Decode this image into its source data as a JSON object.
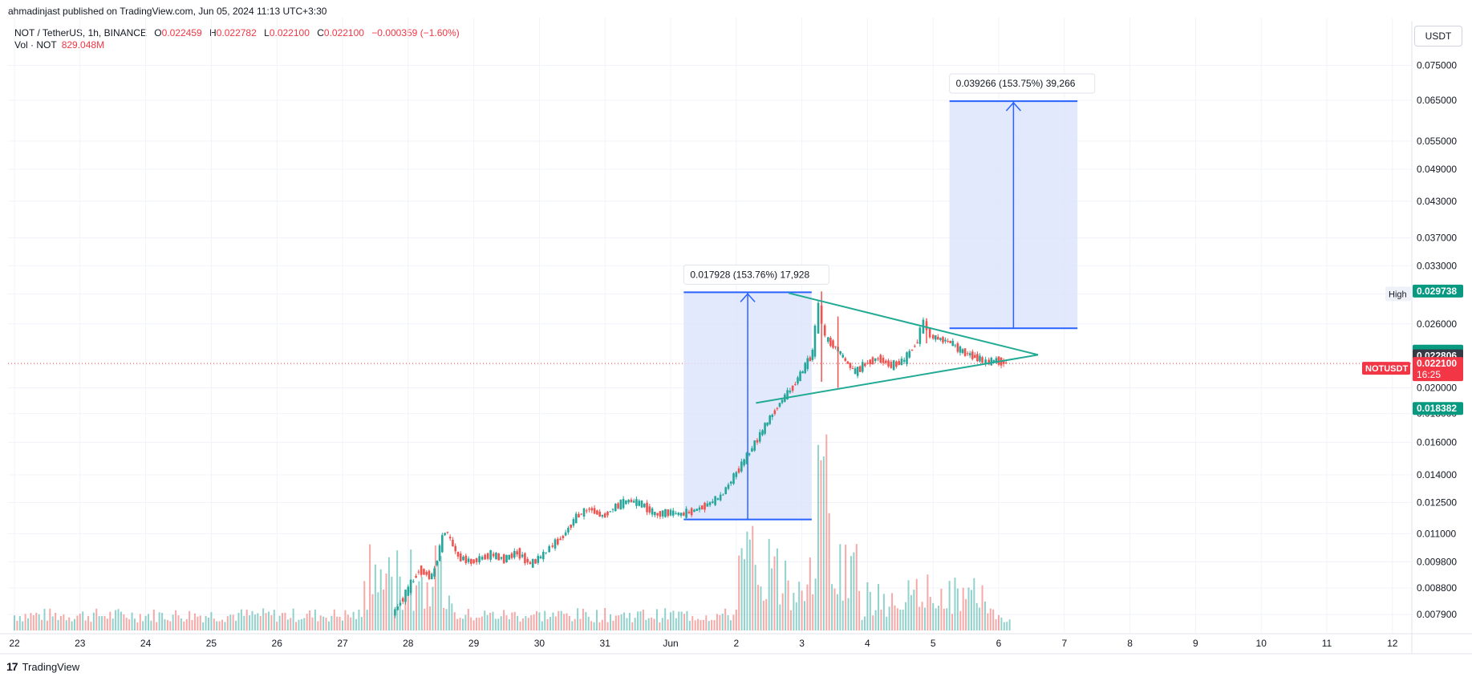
{
  "header": {
    "published": "ahmadinjast published on TradingView.com, Jun 05, 2024 11:13 UTC+3:30"
  },
  "legend": {
    "symbol": "NOT / TetherUS, 1h, BINANCE",
    "open_label": "O",
    "open": "0.022459",
    "high_label": "H",
    "high": "0.022782",
    "low_label": "L",
    "low": "0.022100",
    "close_label": "C",
    "close": "0.022100",
    "change": "−0.000359 (−1.60%)",
    "vol_label": "Vol · NOT",
    "vol": "829.048M"
  },
  "currency_button": "USDT",
  "footer": {
    "brand": "TradingView"
  },
  "colors": {
    "up": "#26a69a",
    "down": "#ef5350",
    "trendline": "#22ab94",
    "measure_fill": "#dbe3fb",
    "measure_line": "#2962ff",
    "last_price": "#f23645",
    "label_green": "#089981",
    "label_dark": "#363a45"
  },
  "chart_data": {
    "type": "candlestick",
    "symbol": "NOTUSDT",
    "y_scale": "log",
    "ylim": [
      0.0073,
      0.08
    ],
    "yticks": [
      "0.075000",
      "0.065000",
      "0.055000",
      "0.049000",
      "0.043000",
      "0.037000",
      "0.033000",
      "0.029400",
      "0.026000",
      "0.020000",
      "0.018000",
      "0.016000",
      "0.014000",
      "0.012500",
      "0.011000",
      "0.009800",
      "0.008800",
      "0.007900"
    ],
    "yticks_num": [
      0.075,
      0.065,
      0.055,
      0.049,
      0.043,
      0.037,
      0.033,
      0.0294,
      0.026,
      0.02,
      0.018,
      0.016,
      0.014,
      0.0125,
      0.011,
      0.0098,
      0.0088,
      0.0079
    ],
    "xticks": [
      "22",
      "23",
      "24",
      "25",
      "26",
      "27",
      "28",
      "29",
      "30",
      "31",
      "Jun",
      "2",
      "3",
      "4",
      "5",
      "6",
      "7",
      "8",
      "9",
      "10",
      "11",
      "12"
    ],
    "xtick_day": [
      22,
      23,
      24,
      25,
      26,
      27,
      28,
      29,
      30,
      31,
      32,
      33,
      34,
      35,
      36,
      37,
      38,
      39,
      40,
      41,
      42,
      43
    ],
    "price_labels": [
      {
        "text": "0.029738",
        "value": 0.029738,
        "style": "green"
      },
      {
        "text": "0.023248",
        "value": 0.023248,
        "style": "green"
      },
      {
        "text": "0.023039",
        "value": 0.023039,
        "style": "green"
      },
      {
        "text": "0.022806",
        "value": 0.022806,
        "style": "dark"
      },
      {
        "text": "0.022100",
        "value": 0.0221,
        "style": "red",
        "sub": "16:25"
      },
      {
        "text": "0.018382",
        "value": 0.018382,
        "style": "green"
      }
    ],
    "high_tag": {
      "text": "High",
      "value": 0.0294
    },
    "symbol_tag": "NOTUSDT",
    "last_price": 0.0221,
    "measure_1": {
      "day_from": 32.2,
      "day_to": 34.15,
      "price_from": 0.01166,
      "price_to": 0.02959,
      "label": "0.017928 (153.76%) 17,928"
    },
    "measure_2": {
      "day_from": 36.25,
      "day_to": 38.2,
      "price_from": 0.02553,
      "price_to": 0.0648,
      "label": "0.039266 (153.75%) 39,266"
    },
    "triangle": {
      "upper": {
        "day_from": 33.8,
        "price_from": 0.0295,
        "day_to": 37.6,
        "price_to": 0.0229
      },
      "lower": {
        "day_from": 33.3,
        "price_from": 0.0188,
        "day_to": 37.6,
        "price_to": 0.0229
      }
    },
    "price_path": [
      [
        27.8,
        0.0079
      ],
      [
        28.0,
        0.0086
      ],
      [
        28.2,
        0.0095
      ],
      [
        28.4,
        0.0092
      ],
      [
        28.6,
        0.0112
      ],
      [
        28.8,
        0.01
      ],
      [
        29.0,
        0.0098
      ],
      [
        29.3,
        0.0101
      ],
      [
        29.5,
        0.0099
      ],
      [
        29.7,
        0.0102
      ],
      [
        29.9,
        0.0097
      ],
      [
        30.1,
        0.0101
      ],
      [
        30.2,
        0.0104
      ],
      [
        30.4,
        0.0109
      ],
      [
        30.6,
        0.0118
      ],
      [
        30.8,
        0.0122
      ],
      [
        31.0,
        0.0118
      ],
      [
        31.2,
        0.0123
      ],
      [
        31.4,
        0.0126
      ],
      [
        31.6,
        0.0124
      ],
      [
        31.8,
        0.0119
      ],
      [
        32.0,
        0.012
      ],
      [
        32.2,
        0.0119
      ],
      [
        32.4,
        0.0121
      ],
      [
        32.6,
        0.0124
      ],
      [
        32.8,
        0.0128
      ],
      [
        33.0,
        0.0139
      ],
      [
        33.2,
        0.0151
      ],
      [
        33.4,
        0.0165
      ],
      [
        33.55,
        0.0177
      ],
      [
        33.7,
        0.0188
      ],
      [
        33.9,
        0.0201
      ],
      [
        34.05,
        0.0215
      ],
      [
        34.2,
        0.0231
      ],
      [
        34.3,
        0.0279
      ],
      [
        34.4,
        0.0245
      ],
      [
        34.55,
        0.0236
      ],
      [
        34.7,
        0.0223
      ],
      [
        34.85,
        0.0213
      ],
      [
        35.0,
        0.0221
      ],
      [
        35.2,
        0.0226
      ],
      [
        35.4,
        0.0219
      ],
      [
        35.6,
        0.0224
      ],
      [
        35.8,
        0.0243
      ],
      [
        35.9,
        0.0262
      ],
      [
        36.0,
        0.0247
      ],
      [
        36.15,
        0.0244
      ],
      [
        36.3,
        0.0241
      ],
      [
        36.45,
        0.0233
      ],
      [
        36.6,
        0.0229
      ],
      [
        36.75,
        0.0225
      ],
      [
        36.85,
        0.0222
      ],
      [
        37.0,
        0.0224
      ],
      [
        37.15,
        0.0221
      ]
    ],
    "wicks": [
      {
        "day": 34.3,
        "low": 0.0205,
        "high": 0.0297
      },
      {
        "day": 34.55,
        "low": 0.02,
        "high": 0.0268
      },
      {
        "day": 35.9,
        "low": 0.024,
        "high": 0.0266
      }
    ]
  }
}
